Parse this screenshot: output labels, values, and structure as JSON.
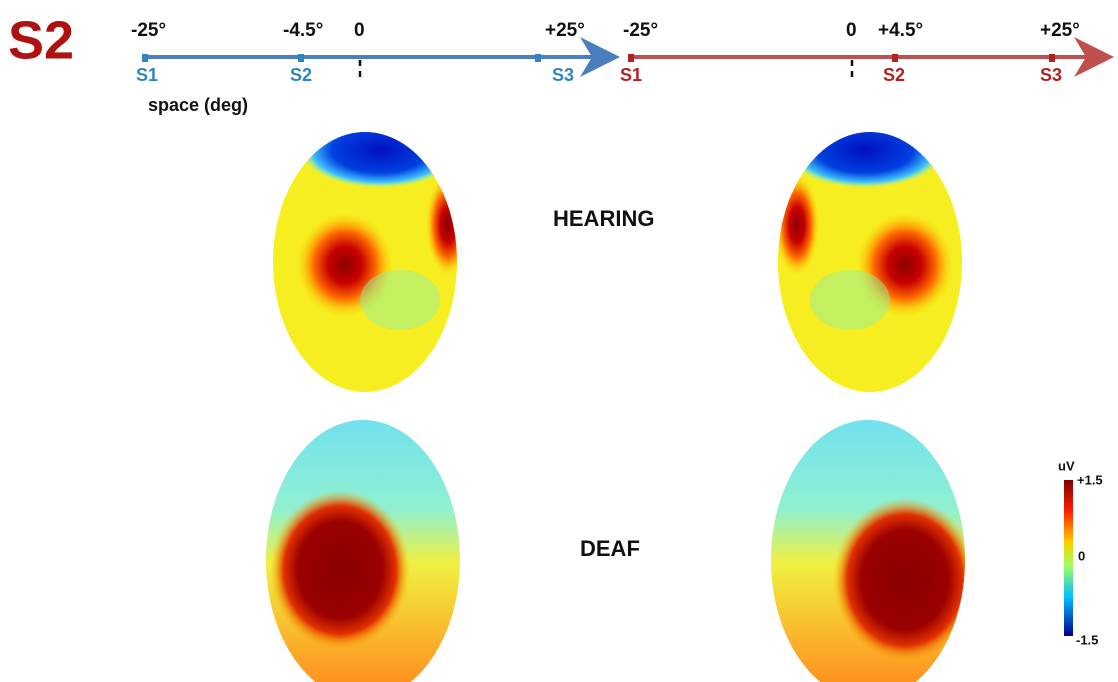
{
  "panel_label": "S2",
  "left_axis": {
    "top_labels": [
      "-25°",
      "-4.5°",
      "0",
      "+25°"
    ],
    "bottom_labels": [
      "S1",
      "S2",
      "S3"
    ],
    "caption": "space (deg)"
  },
  "right_axis": {
    "top_labels": [
      "-25°",
      "0",
      "+4.5°",
      "+25°"
    ],
    "bottom_labels": [
      "S1",
      "S2",
      "S3"
    ]
  },
  "rows": [
    {
      "label": "HEARING"
    },
    {
      "label": "DEAF"
    }
  ],
  "colorbar": {
    "unit": "uV",
    "max": "+1.5",
    "mid": "0",
    "min": "-1.5"
  }
}
